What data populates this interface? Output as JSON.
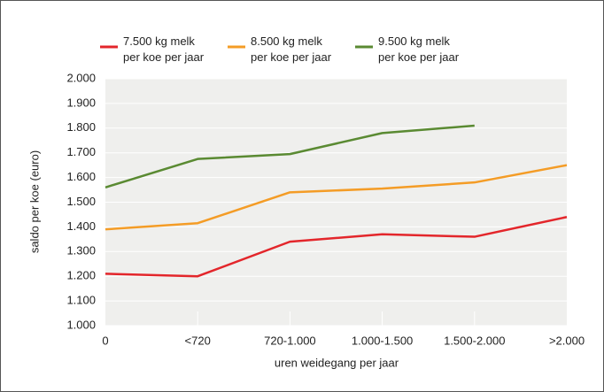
{
  "chart_data": {
    "type": "line",
    "x_label": "uren weidegang per jaar",
    "y_label": "saldo per koe (euro)",
    "categories": [
      "0",
      "<720",
      "720-1.000",
      "1.000-1.500",
      "1.500-2.000",
      ">2.000"
    ],
    "series": [
      {
        "name": "7.500 kg melk\nper koe per jaar",
        "color": "#e3262b",
        "values": [
          1210,
          1200,
          1340,
          1370,
          1360,
          1440
        ]
      },
      {
        "name": "8.500 kg melk\nper koe per jaar",
        "color": "#f49c26",
        "values": [
          1390,
          1415,
          1540,
          1555,
          1580,
          1650
        ]
      },
      {
        "name": "9.500 kg melk\nper koe per jaar",
        "color": "#5a8a32",
        "values": [
          1560,
          1675,
          1695,
          1780,
          1810,
          null
        ]
      }
    ],
    "ylim": [
      1000,
      2000
    ],
    "yticks": [
      {
        "value": 1000,
        "label": "1.000"
      },
      {
        "value": 1100,
        "label": "1.100"
      },
      {
        "value": 1200,
        "label": "1.200"
      },
      {
        "value": 1300,
        "label": "1.300"
      },
      {
        "value": 1400,
        "label": "1.400"
      },
      {
        "value": 1500,
        "label": "1.500"
      },
      {
        "value": 1600,
        "label": "1.600"
      },
      {
        "value": 1700,
        "label": "1.700"
      },
      {
        "value": 1800,
        "label": "1.800"
      },
      {
        "value": 1900,
        "label": "1.900"
      },
      {
        "value": 2000,
        "label": "2.000"
      }
    ],
    "grid": true
  }
}
